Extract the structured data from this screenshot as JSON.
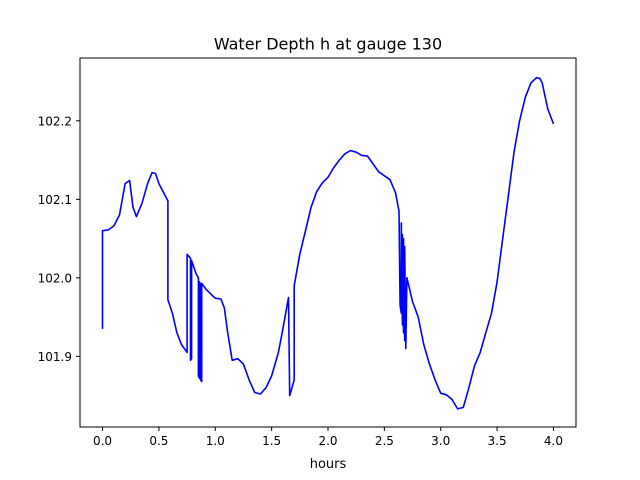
{
  "chart_data": {
    "type": "line",
    "title": "Water Depth h at gauge 130",
    "xlabel": "hours",
    "ylabel": "",
    "xlim": [
      -0.2,
      4.2
    ],
    "ylim": [
      101.81,
      102.28
    ],
    "x_ticks": [
      0.0,
      0.5,
      1.0,
      1.5,
      2.0,
      2.5,
      3.0,
      3.5,
      4.0
    ],
    "x_tick_labels": [
      "0.0",
      "0.5",
      "1.0",
      "1.5",
      "2.0",
      "2.5",
      "3.0",
      "3.5",
      "4.0"
    ],
    "y_ticks": [
      101.9,
      102.0,
      102.1,
      102.2
    ],
    "y_tick_labels": [
      "101.9",
      "102.0",
      "102.1",
      "102.2"
    ],
    "grid": false,
    "series": [
      {
        "name": "",
        "color": "#0000ff",
        "points": [
          [
            0.0,
            101.935
          ],
          [
            0.0,
            102.06
          ],
          [
            0.05,
            102.061
          ],
          [
            0.1,
            102.066
          ],
          [
            0.15,
            102.08
          ],
          [
            0.2,
            102.12
          ],
          [
            0.24,
            102.124
          ],
          [
            0.27,
            102.09
          ],
          [
            0.3,
            102.078
          ],
          [
            0.35,
            102.095
          ],
          [
            0.4,
            102.12
          ],
          [
            0.44,
            102.134
          ],
          [
            0.47,
            102.133
          ],
          [
            0.5,
            102.12
          ],
          [
            0.58,
            102.098
          ],
          [
            0.58,
            101.972
          ],
          [
            0.62,
            101.955
          ],
          [
            0.66,
            101.93
          ],
          [
            0.7,
            101.915
          ],
          [
            0.75,
            101.905
          ],
          [
            0.75,
            102.03
          ],
          [
            0.78,
            102.025
          ],
          [
            0.78,
            101.895
          ],
          [
            0.79,
            101.897
          ],
          [
            0.79,
            102.022
          ],
          [
            0.83,
            102.005
          ],
          [
            0.85,
            102.0
          ],
          [
            0.85,
            101.875
          ],
          [
            0.86,
            101.872
          ],
          [
            0.86,
            101.995
          ],
          [
            0.87,
            101.99
          ],
          [
            0.87,
            101.87
          ],
          [
            0.88,
            101.868
          ],
          [
            0.88,
            101.993
          ],
          [
            0.92,
            101.985
          ],
          [
            0.97,
            101.978
          ],
          [
            1.0,
            101.974
          ],
          [
            1.05,
            101.973
          ],
          [
            1.08,
            101.962
          ],
          [
            1.11,
            101.93
          ],
          [
            1.15,
            101.895
          ],
          [
            1.2,
            101.897
          ],
          [
            1.25,
            101.89
          ],
          [
            1.3,
            101.87
          ],
          [
            1.35,
            101.854
          ],
          [
            1.4,
            101.852
          ],
          [
            1.45,
            101.86
          ],
          [
            1.5,
            101.875
          ],
          [
            1.56,
            101.905
          ],
          [
            1.6,
            101.935
          ],
          [
            1.65,
            101.975
          ],
          [
            1.66,
            101.85
          ],
          [
            1.7,
            101.87
          ],
          [
            1.7,
            101.99
          ],
          [
            1.75,
            102.03
          ],
          [
            1.8,
            102.06
          ],
          [
            1.85,
            102.09
          ],
          [
            1.9,
            102.11
          ],
          [
            1.95,
            102.121
          ],
          [
            2.0,
            102.128
          ],
          [
            2.05,
            102.14
          ],
          [
            2.1,
            102.15
          ],
          [
            2.15,
            102.158
          ],
          [
            2.2,
            102.162
          ],
          [
            2.25,
            102.16
          ],
          [
            2.3,
            102.156
          ],
          [
            2.35,
            102.155
          ],
          [
            2.4,
            102.145
          ],
          [
            2.45,
            102.135
          ],
          [
            2.5,
            102.13
          ],
          [
            2.55,
            102.125
          ],
          [
            2.6,
            102.108
          ],
          [
            2.63,
            102.085
          ],
          [
            2.64,
            101.965
          ],
          [
            2.65,
            101.955
          ],
          [
            2.65,
            102.07
          ],
          [
            2.66,
            101.94
          ],
          [
            2.66,
            102.055
          ],
          [
            2.67,
            101.93
          ],
          [
            2.67,
            102.05
          ],
          [
            2.68,
            101.92
          ],
          [
            2.68,
            102.04
          ],
          [
            2.69,
            101.91
          ],
          [
            2.7,
            102.0
          ],
          [
            2.75,
            101.97
          ],
          [
            2.8,
            101.95
          ],
          [
            2.85,
            101.915
          ],
          [
            2.9,
            101.89
          ],
          [
            2.95,
            101.87
          ],
          [
            3.0,
            101.853
          ],
          [
            3.05,
            101.851
          ],
          [
            3.1,
            101.845
          ],
          [
            3.15,
            101.833
          ],
          [
            3.2,
            101.835
          ],
          [
            3.25,
            101.86
          ],
          [
            3.3,
            101.888
          ],
          [
            3.35,
            101.905
          ],
          [
            3.4,
            101.93
          ],
          [
            3.45,
            101.955
          ],
          [
            3.5,
            101.995
          ],
          [
            3.55,
            102.05
          ],
          [
            3.6,
            102.105
          ],
          [
            3.65,
            102.16
          ],
          [
            3.7,
            102.2
          ],
          [
            3.75,
            102.23
          ],
          [
            3.8,
            102.248
          ],
          [
            3.85,
            102.255
          ],
          [
            3.88,
            102.254
          ],
          [
            3.9,
            102.248
          ],
          [
            3.95,
            102.215
          ],
          [
            4.0,
            102.196
          ]
        ]
      }
    ]
  }
}
